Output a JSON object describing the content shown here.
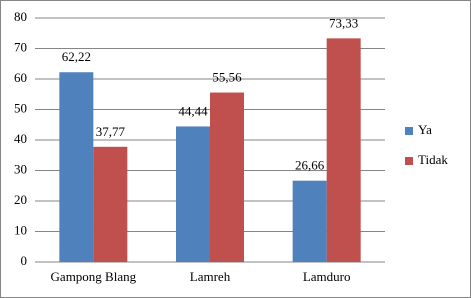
{
  "chart_data": {
    "type": "bar",
    "categories": [
      "Gampong Blang",
      "Lamreh",
      "Lamduro"
    ],
    "series": [
      {
        "name": "Ya",
        "color": "#4f81bd",
        "values": [
          62.22,
          44.44,
          26.66
        ],
        "value_labels": [
          "62,22",
          "44,44",
          "26,66"
        ]
      },
      {
        "name": "Tidak",
        "color": "#c0504d",
        "values": [
          37.77,
          55.56,
          73.33
        ],
        "value_labels": [
          "37,77",
          "55,56",
          "73,33"
        ]
      }
    ],
    "ylim": [
      0,
      80
    ],
    "yticks": [
      0,
      10,
      20,
      30,
      40,
      50,
      60,
      70,
      80
    ],
    "grid": true,
    "legend": "right"
  }
}
